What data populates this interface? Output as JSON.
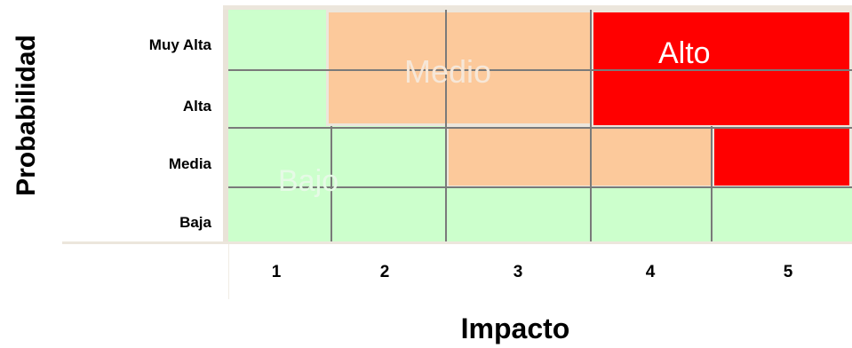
{
  "matrix": {
    "y_axis_title": "Probabilidad",
    "x_axis_title": "Impacto",
    "rows": [
      "Muy Alta",
      "Alta",
      "Media",
      "Baja"
    ],
    "columns": [
      "1",
      "2",
      "3",
      "4",
      "5"
    ],
    "zones": [
      {
        "label": "Bajo",
        "color": "#ccffcc"
      },
      {
        "label": "Medio",
        "color": "#fcc99b"
      },
      {
        "label": "Alto",
        "color": "#ff0000"
      }
    ],
    "colors": {
      "grid_line": "#7a7a7a",
      "zone_border": "#ece6dc",
      "axis_frame": "#e9e3d8"
    }
  }
}
